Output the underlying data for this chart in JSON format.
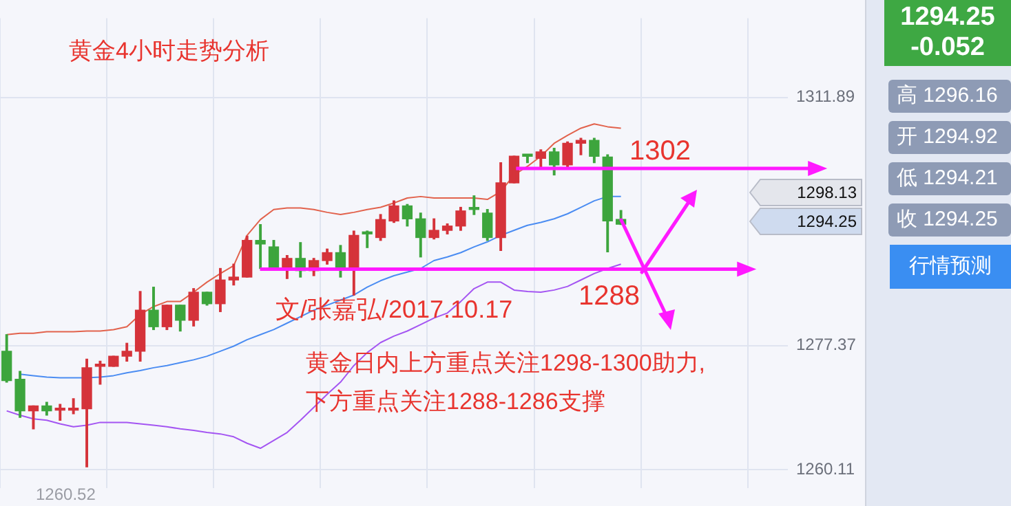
{
  "chart_data": {
    "type": "candlestick",
    "title": "黄金4小时走势分析",
    "categories": [
      null,
      null,
      null,
      null,
      null,
      null,
      null,
      null,
      null,
      null,
      null,
      null,
      null,
      null,
      null,
      null,
      null,
      null,
      null,
      null,
      null,
      null,
      null,
      null,
      null,
      null,
      null,
      null,
      null,
      null,
      null,
      null,
      null,
      null,
      null,
      null,
      null,
      null,
      null,
      null,
      null,
      null,
      null,
      null,
      null,
      null,
      null,
      null,
      null,
      null,
      null,
      null,
      null,
      null,
      null,
      null,
      null,
      null,
      null
    ],
    "ohlc": [
      [
        1276.6,
        1278.9,
        1272.3,
        1272.5
      ],
      [
        1272.7,
        1273.8,
        1267.4,
        1268.3
      ],
      [
        1268.3,
        1269.0,
        1265.8,
        1269.0
      ],
      [
        1269.0,
        1269.5,
        1267.7,
        1268.3
      ],
      [
        1268.4,
        1269.2,
        1267.0,
        1268.6
      ],
      [
        1268.4,
        1270.0,
        1267.9,
        1268.6
      ],
      [
        1268.6,
        1275.5,
        1260.52,
        1274.3
      ],
      [
        1274.5,
        1275.2,
        1272.0,
        1274.8
      ],
      [
        1274.5,
        1275.9,
        1274.5,
        1275.9
      ],
      [
        1275.9,
        1277.7,
        1275.2,
        1276.6
      ],
      [
        1276.6,
        1284.9,
        1275.2,
        1282.3
      ],
      [
        1282.3,
        1285.5,
        1279.6,
        1280.0
      ],
      [
        1280.0,
        1283.0,
        1279.6,
        1283.0
      ],
      [
        1283.0,
        1283.0,
        1279.4,
        1280.9
      ],
      [
        1280.9,
        1285.3,
        1280.1,
        1284.8
      ],
      [
        1284.8,
        1284.8,
        1283.0,
        1283.2
      ],
      [
        1283.2,
        1288.1,
        1282.1,
        1286.5
      ],
      [
        1286.5,
        1288.7,
        1285.8,
        1286.9
      ],
      [
        1286.9,
        1292.6,
        1286.9,
        1292.0
      ],
      [
        1292.0,
        1294.2,
        1288.1,
        1291.5
      ],
      [
        1291.1,
        1292.0,
        1288.0,
        1288.3
      ],
      [
        1288.3,
        1289.9,
        1286.7,
        1289.5
      ],
      [
        1289.5,
        1291.7,
        1286.9,
        1287.8
      ],
      [
        1287.8,
        1289.5,
        1287.1,
        1289.2
      ],
      [
        1289.2,
        1290.8,
        1288.7,
        1290.3
      ],
      [
        1290.3,
        1291.3,
        1286.9,
        1288.3
      ],
      [
        1288.3,
        1293.3,
        1284.4,
        1292.7
      ],
      [
        1293.1,
        1293.3,
        1291.0,
        1292.9
      ],
      [
        1292.4,
        1295.6,
        1292.0,
        1294.9
      ],
      [
        1294.7,
        1297.5,
        1294.5,
        1296.8
      ],
      [
        1296.8,
        1297.0,
        1294.0,
        1295.0
      ],
      [
        1295.0,
        1295.8,
        1289.7,
        1292.4
      ],
      [
        1292.4,
        1295.0,
        1292.2,
        1293.4
      ],
      [
        1293.4,
        1294.3,
        1292.9,
        1294.0
      ],
      [
        1294.0,
        1296.6,
        1293.4,
        1296.1
      ],
      [
        1296.5,
        1298.2,
        1295.6,
        1296.3
      ],
      [
        1295.8,
        1296.3,
        1292.0,
        1292.4
      ],
      [
        1292.4,
        1302.8,
        1290.6,
        1300.0
      ],
      [
        1300.0,
        1303.7,
        1300.0,
        1303.7
      ],
      [
        1303.9,
        1303.9,
        1302.8,
        1303.7
      ],
      [
        1303.4,
        1304.6,
        1302.1,
        1304.3
      ],
      [
        1304.3,
        1304.8,
        1301.1,
        1302.5
      ],
      [
        1302.5,
        1305.7,
        1302.1,
        1305.5
      ],
      [
        1305.5,
        1306.2,
        1303.9,
        1305.9
      ],
      [
        1305.9,
        1306.2,
        1302.8,
        1303.7
      ],
      [
        1303.6,
        1303.9,
        1290.4,
        1294.7
      ],
      [
        1294.92,
        1296.16,
        1294.21,
        1294.25
      ],
      null,
      null,
      null,
      null,
      null,
      null,
      null,
      null,
      null,
      null,
      null,
      null
    ],
    "colors": [
      "#3da53d",
      "#3da53d",
      "#d5333a",
      "#3da53d",
      "#d5333a",
      "#d5333a",
      "#d5333a",
      "#d5333a",
      "#d5333a",
      "#d5333a",
      "#d5333a",
      "#3da53d",
      "#d5333a",
      "#3da53d",
      "#d5333a",
      "#3da53d",
      "#d5333a",
      "#d5333a",
      "#d5333a",
      "#3da53d",
      "#3da53d",
      "#d5333a",
      "#3da53d",
      "#d5333a",
      "#d5333a",
      "#3da53d",
      "#d5333a",
      "#3da53d",
      "#d5333a",
      "#d5333a",
      "#3da53d",
      "#3da53d",
      "#d5333a",
      "#d5333a",
      "#d5333a",
      "#3da53d",
      "#3da53d",
      "#d5333a",
      "#d5333a",
      "#3da53d",
      "#d5333a",
      "#3da53d",
      "#d5333a",
      "#d5333a",
      "#3da53d",
      "#3da53d",
      "#3da53d",
      null,
      null,
      null,
      null,
      null,
      null,
      null,
      null,
      null,
      null,
      null,
      null
    ],
    "series": [
      {
        "type": "line",
        "color": "#e2624c",
        "values": [
          1278.9,
          1279.1,
          1279.1,
          1279.3,
          1279.3,
          1279.3,
          1279.4,
          1279.4,
          1279.6,
          1280.0,
          1281.7,
          1282.8,
          1283.5,
          1283.5,
          1284.8,
          1286.2,
          1287.4,
          1288.5,
          1292.7,
          1294.9,
          1296.3,
          1296.5,
          1296.5,
          1296.3,
          1295.9,
          1295.6,
          1295.9,
          1296.3,
          1296.6,
          1297.2,
          1297.9,
          1298.1,
          1297.9,
          1297.9,
          1297.9,
          1297.9,
          1297.7,
          1298.8,
          1301.1,
          1302.3,
          1303.7,
          1305.5,
          1306.6,
          1307.6,
          1308.2,
          1307.8,
          1307.6,
          null,
          null,
          null,
          null,
          null,
          null,
          null,
          null,
          null,
          null,
          null,
          null
        ]
      },
      {
        "type": "line",
        "color": "#4a8cf2",
        "values": [
          null,
          1273.4,
          1273.2,
          1273.0,
          1272.9,
          1272.9,
          1272.9,
          1273.0,
          1273.2,
          1273.6,
          1273.9,
          1274.3,
          1274.6,
          1275.0,
          1275.4,
          1275.9,
          1276.6,
          1277.3,
          1278.2,
          1278.9,
          1279.6,
          1280.5,
          1281.4,
          1282.3,
          1283.0,
          1283.7,
          1284.4,
          1285.5,
          1286.4,
          1287.1,
          1287.6,
          1288.1,
          1289.2,
          1289.7,
          1290.3,
          1291.1,
          1291.8,
          1292.7,
          1293.4,
          1294.1,
          1294.5,
          1295.0,
          1295.7,
          1296.6,
          1297.5,
          1298.1,
          1298.1,
          null,
          null,
          null,
          null,
          null,
          null,
          null,
          null,
          null,
          null,
          null,
          null
        ]
      },
      {
        "type": "line",
        "color": "#a455f2",
        "values": [
          1268.3,
          1267.7,
          1267.2,
          1267.0,
          1266.5,
          1266.1,
          1266.3,
          1266.7,
          1266.7,
          1266.7,
          1266.5,
          1266.3,
          1266.1,
          1265.8,
          1265.6,
          1265.3,
          1265.1,
          1264.7,
          1263.8,
          1263.1,
          1264.2,
          1265.3,
          1267.0,
          1268.8,
          1270.6,
          1272.3,
          1274.6,
          1276.4,
          1277.8,
          1278.7,
          1279.4,
          1280.3,
          1281.2,
          1281.9,
          1283.5,
          1285.3,
          1286.2,
          1286.2,
          1285.1,
          1284.9,
          1284.8,
          1285.1,
          1285.6,
          1286.5,
          1287.4,
          1288.1,
          1288.7,
          null,
          null,
          null,
          null,
          null,
          null,
          null,
          null,
          null,
          null,
          null,
          null
        ]
      }
    ],
    "ylim": [
      1257.6,
      1322.9
    ],
    "yticks": [
      1260.11,
      1277.37,
      1311.89
    ],
    "grid": true,
    "ref_lines": [
      {
        "axis": "y",
        "value": 1302,
        "label": "1302",
        "color": "#ff1aff"
      },
      {
        "axis": "y",
        "value": 1288,
        "label": "1288",
        "color": "#ff1aff"
      }
    ],
    "annotations": [
      "文/张嘉弘/2017.10.17",
      "黄金日内上方重点关注1298-1300助力,",
      "下方重点关注1288-1286支撑",
      "1260.52",
      "1298.13",
      "1294.25",
      "1294.25",
      "-0.052",
      "高 1296.16",
      "开 1294.92",
      "低 1294.21",
      "收 1294.25",
      "行情预测"
    ]
  }
}
